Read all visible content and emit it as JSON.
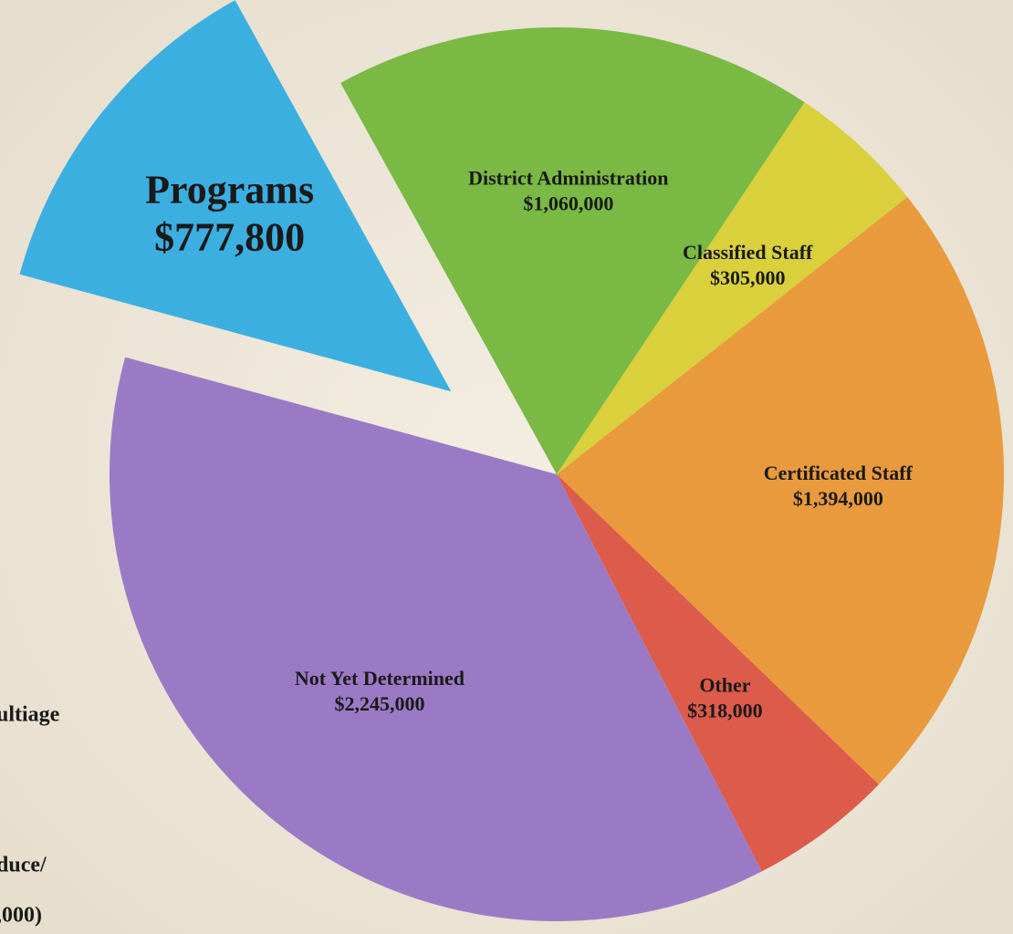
{
  "chart_data": {
    "type": "pie",
    "categories": [
      "District Administration",
      "Classified Staff",
      "Certificated Staff",
      "Other",
      "Not Yet Determined",
      "Programs"
    ],
    "values": [
      1060000,
      305000,
      1394000,
      318000,
      2245000,
      777800
    ],
    "value_labels": [
      "$1,060,000",
      "$305,000",
      "$1,394,000",
      "$318,000",
      "$2,245,000",
      "$777,800"
    ],
    "colors": [
      "#79b944",
      "#d9d03b",
      "#e99a3d",
      "#dd5b4a",
      "#9b7ac5",
      "#3cafe1"
    ],
    "exploded": "Programs",
    "annotations": [
      "ultiage",
      "duce/",
      ",000)"
    ]
  }
}
